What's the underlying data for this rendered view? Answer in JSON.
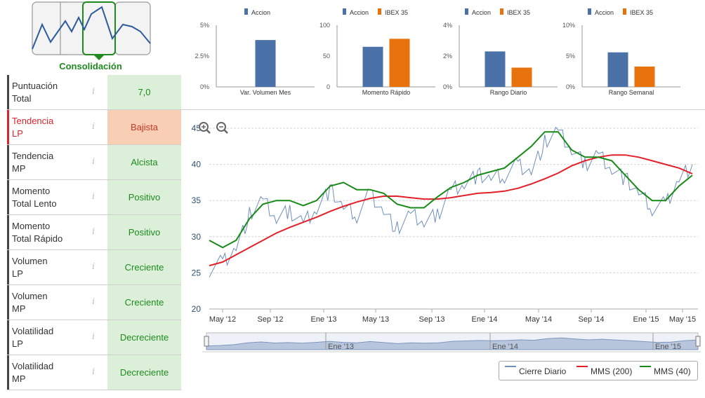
{
  "phase": {
    "label": "Consolidación"
  },
  "scorecard": [
    {
      "name": "Puntuación Total",
      "line1": "Puntuación",
      "line2": "Total",
      "value": "7,0",
      "status": "good"
    },
    {
      "name": "Tendencia LP",
      "line1": "Tendencia",
      "line2": "LP",
      "value": "Bajista",
      "status": "bad"
    },
    {
      "name": "Tendencia MP",
      "line1": "Tendencia",
      "line2": "MP",
      "value": "Alcista",
      "status": "good"
    },
    {
      "name": "Momento Total Lento",
      "line1": "Momento",
      "line2": "Total Lento",
      "value": "Positivo",
      "status": "good"
    },
    {
      "name": "Momento Total Rápido",
      "line1": "Momento",
      "line2": "Total Rápido",
      "value": "Positivo",
      "status": "good"
    },
    {
      "name": "Volumen LP",
      "line1": "Volumen",
      "line2": "LP",
      "value": "Creciente",
      "status": "good"
    },
    {
      "name": "Volumen MP",
      "line1": "Volumen",
      "line2": "MP",
      "value": "Creciente",
      "status": "good"
    },
    {
      "name": "Volatilidad LP",
      "line1": "Volatilidad",
      "line2": "LP",
      "value": "Decreciente",
      "status": "good"
    },
    {
      "name": "Volatilidad MP",
      "line1": "Volatilidad",
      "line2": "MP",
      "value": "Decreciente",
      "status": "good"
    }
  ],
  "colors": {
    "accion": "#4a72a8",
    "ibex": "#e8730c",
    "good": "#1f8a1f",
    "bad": "#d9232d",
    "mms200": "#e3202a",
    "mms40": "#178a17",
    "cierre": "#6f8fbd"
  },
  "chart_data": [
    {
      "type": "bar",
      "title": "Var. Volumen Mes",
      "series": [
        {
          "name": "Accion",
          "values": [
            3.8
          ]
        }
      ],
      "yticks": [
        "5%",
        "2.5%",
        "0%"
      ],
      "ylim": [
        0,
        5
      ]
    },
    {
      "type": "bar",
      "title": "Momento Rápido",
      "series": [
        {
          "name": "Accion",
          "values": [
            65
          ]
        },
        {
          "name": "IBEX 35",
          "values": [
            78
          ]
        }
      ],
      "yticks": [
        "100",
        "50",
        "0"
      ],
      "ylim": [
        0,
        100
      ]
    },
    {
      "type": "bar",
      "title": "Rango Diario",
      "series": [
        {
          "name": "Accion",
          "values": [
            2.3
          ]
        },
        {
          "name": "IBEX 35",
          "values": [
            1.25
          ]
        }
      ],
      "yticks": [
        "4%",
        "2%",
        "0%"
      ],
      "ylim": [
        0,
        4
      ]
    },
    {
      "type": "bar",
      "title": "Rango Semanal",
      "series": [
        {
          "name": "Accion",
          "values": [
            5.6
          ]
        },
        {
          "name": "IBEX 35",
          "values": [
            3.3
          ]
        }
      ],
      "yticks": [
        "10%",
        "5%",
        "0%"
      ],
      "ylim": [
        0,
        10
      ]
    },
    {
      "type": "line",
      "ylim": [
        20,
        45
      ],
      "yticks": [
        20,
        25,
        30,
        35,
        40,
        45
      ],
      "xticks": [
        "May '12",
        "Sep '12",
        "Ene '13",
        "May '13",
        "Sep '13",
        "Ene '14",
        "May '14",
        "Sep '14",
        "Ene '15",
        "May '15"
      ],
      "navigator_ticks": [
        "Ene '13",
        "Ene '14",
        "Ene '15"
      ],
      "x": [
        "2012-05",
        "2012-06",
        "2012-07",
        "2012-08",
        "2012-09",
        "2012-10",
        "2012-11",
        "2012-12",
        "2013-01",
        "2013-02",
        "2013-03",
        "2013-04",
        "2013-05",
        "2013-06",
        "2013-07",
        "2013-08",
        "2013-09",
        "2013-10",
        "2013-11",
        "2013-12",
        "2014-01",
        "2014-02",
        "2014-03",
        "2014-04",
        "2014-05",
        "2014-06",
        "2014-07",
        "2014-08",
        "2014-09",
        "2014-10",
        "2014-11",
        "2014-12",
        "2015-01",
        "2015-02",
        "2015-03",
        "2015-04",
        "2015-05"
      ],
      "series": [
        {
          "name": "Cierre Diario",
          "values": [
            25.5,
            26.5,
            28.5,
            33.0,
            35.0,
            32.5,
            33.5,
            32.0,
            34.0,
            36.5,
            34.0,
            33.0,
            36.0,
            33.5,
            31.0,
            33.0,
            32.0,
            33.0,
            36.5,
            37.5,
            38.5,
            38.0,
            38.5,
            40.0,
            39.0,
            43.0,
            44.5,
            42.0,
            40.0,
            41.5,
            39.5,
            38.0,
            36.0,
            34.0,
            34.5,
            38.0,
            40.0
          ]
        },
        {
          "name": "MMS (200)",
          "values": [
            26.0,
            26.5,
            27.5,
            28.5,
            29.5,
            30.5,
            31.3,
            32.0,
            32.7,
            33.5,
            34.2,
            34.8,
            35.3,
            35.6,
            35.6,
            35.4,
            35.2,
            35.2,
            35.4,
            35.7,
            36.0,
            36.1,
            36.3,
            36.7,
            37.3,
            38.0,
            38.8,
            39.8,
            40.5,
            41.0,
            41.3,
            41.3,
            41.0,
            40.5,
            40.0,
            39.5,
            38.7
          ]
        },
        {
          "name": "MMS (40)",
          "values": [
            29.5,
            28.5,
            29.5,
            32.5,
            34.5,
            35.0,
            35.0,
            34.3,
            35.0,
            37.0,
            37.5,
            36.5,
            36.5,
            36.0,
            34.5,
            34.0,
            34.0,
            35.5,
            36.8,
            37.5,
            38.5,
            39.0,
            39.5,
            41.0,
            42.5,
            44.5,
            44.5,
            42.0,
            41.0,
            41.0,
            40.5,
            38.5,
            36.5,
            35.0,
            35.0,
            37.0,
            38.5
          ]
        }
      ],
      "legend": [
        "Cierre Diario",
        "MMS (200)",
        "MMS (40)"
      ]
    }
  ]
}
